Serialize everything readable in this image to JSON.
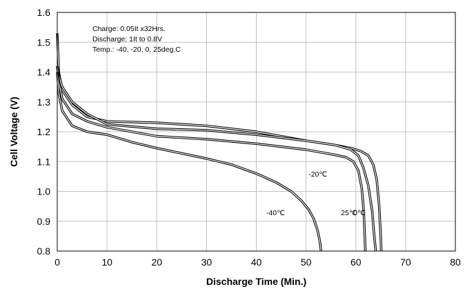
{
  "chart_data": {
    "type": "line",
    "xlabel": "Discharge Time (Min.)",
    "ylabel": "Cell Voltage (V)",
    "xlim": [
      0,
      80
    ],
    "ylim": [
      0.8,
      1.6
    ],
    "x_ticks": [
      "0",
      "10",
      "20",
      "30",
      "40",
      "50",
      "60",
      "70",
      "80"
    ],
    "y_ticks": [
      "0.8",
      "0.9",
      "1.0",
      "1.1",
      "1.2",
      "1.3",
      "1.4",
      "1.5",
      "1.6"
    ],
    "grid": true,
    "annotations": [
      "Charge: 0.05It x32Hrs.",
      "Discharge: 1It to 0.8V",
      "Temp.: -40, -20, 0, 25deg.C"
    ],
    "series": [
      {
        "name": "25℃",
        "label_at": [
          57,
          0.92
        ],
        "double_line": true,
        "points": [
          [
            0,
            1.53
          ],
          [
            0.3,
            1.4
          ],
          [
            1,
            1.34
          ],
          [
            3,
            1.29
          ],
          [
            6,
            1.25
          ],
          [
            10,
            1.235
          ],
          [
            20,
            1.23
          ],
          [
            30,
            1.22
          ],
          [
            40,
            1.2
          ],
          [
            50,
            1.17
          ],
          [
            56,
            1.155
          ],
          [
            59,
            1.145
          ],
          [
            61,
            1.135
          ],
          [
            62.5,
            1.12
          ],
          [
            63.5,
            1.09
          ],
          [
            64.2,
            1.04
          ],
          [
            64.7,
            0.95
          ],
          [
            65,
            0.85
          ],
          [
            65.1,
            0.8
          ]
        ]
      },
      {
        "name": "0℃",
        "label_at": [
          59.5,
          0.92
        ],
        "double_line": true,
        "points": [
          [
            0,
            1.42
          ],
          [
            0.3,
            1.39
          ],
          [
            1,
            1.35
          ],
          [
            3,
            1.3
          ],
          [
            6,
            1.26
          ],
          [
            10,
            1.225
          ],
          [
            20,
            1.21
          ],
          [
            30,
            1.205
          ],
          [
            40,
            1.19
          ],
          [
            50,
            1.17
          ],
          [
            56,
            1.155
          ],
          [
            59,
            1.14
          ],
          [
            60.5,
            1.12
          ],
          [
            61.5,
            1.08
          ],
          [
            62.5,
            1.02
          ],
          [
            63.3,
            0.93
          ],
          [
            63.7,
            0.85
          ],
          [
            64,
            0.8
          ]
        ]
      },
      {
        "name": "-20℃",
        "label_at": [
          50.5,
          1.05
        ],
        "double_line": true,
        "points": [
          [
            0,
            1.42
          ],
          [
            0.3,
            1.37
          ],
          [
            1,
            1.31
          ],
          [
            3,
            1.26
          ],
          [
            6,
            1.235
          ],
          [
            10,
            1.215
          ],
          [
            20,
            1.185
          ],
          [
            30,
            1.175
          ],
          [
            40,
            1.16
          ],
          [
            50,
            1.14
          ],
          [
            55,
            1.125
          ],
          [
            58,
            1.115
          ],
          [
            59.5,
            1.1
          ],
          [
            60.5,
            1.07
          ],
          [
            61.2,
            1.01
          ],
          [
            61.6,
            0.93
          ],
          [
            61.8,
            0.85
          ],
          [
            61.9,
            0.8
          ]
        ]
      },
      {
        "name": "-40℃",
        "label_at": [
          42,
          0.92
        ],
        "double_line": true,
        "points": [
          [
            0,
            1.4
          ],
          [
            0.3,
            1.33
          ],
          [
            1,
            1.27
          ],
          [
            3,
            1.22
          ],
          [
            6,
            1.2
          ],
          [
            10,
            1.19
          ],
          [
            15,
            1.165
          ],
          [
            20,
            1.145
          ],
          [
            30,
            1.11
          ],
          [
            35,
            1.09
          ],
          [
            40,
            1.06
          ],
          [
            44,
            1.03
          ],
          [
            47,
            1.0
          ],
          [
            49,
            0.97
          ],
          [
            50.5,
            0.94
          ],
          [
            51.5,
            0.91
          ],
          [
            52.3,
            0.87
          ],
          [
            52.8,
            0.83
          ],
          [
            53,
            0.8
          ]
        ]
      }
    ]
  }
}
